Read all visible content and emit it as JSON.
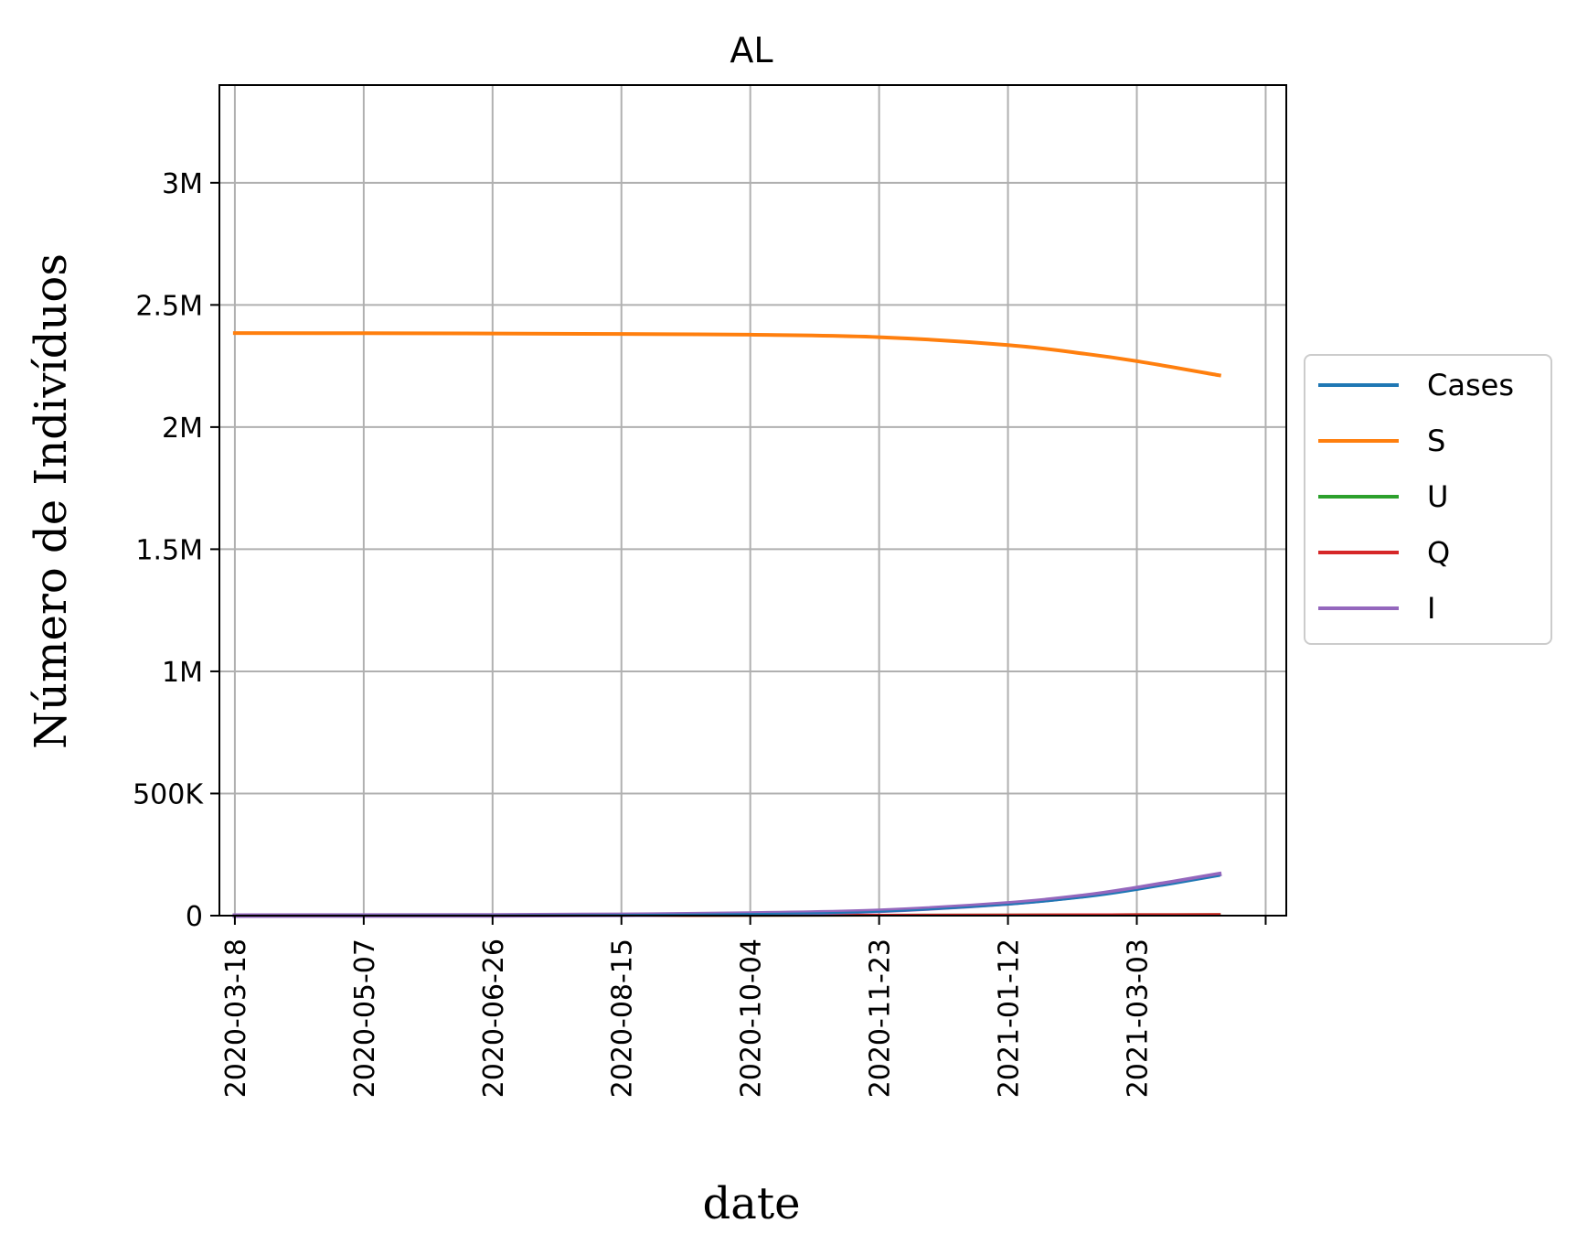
{
  "chart_data": {
    "type": "line",
    "title": "AL",
    "xlabel": "date",
    "ylabel": "Número de Indivíduos",
    "grid": true,
    "legend_position": "outside-right",
    "x_ticks": [
      "2020-03-18",
      "2020-05-07",
      "2020-06-26",
      "2020-08-15",
      "2020-10-04",
      "2020-11-23",
      "2021-01-12",
      "2021-03-03",
      ""
    ],
    "y_ticks": [
      {
        "value": 0,
        "label": "0"
      },
      {
        "value": 500000,
        "label": "500K"
      },
      {
        "value": 1000000,
        "label": "1M"
      },
      {
        "value": 1500000,
        "label": "1.5M"
      },
      {
        "value": 2000000,
        "label": "2M"
      },
      {
        "value": 2500000,
        "label": "2.5M"
      },
      {
        "value": 3000000,
        "label": "3M"
      }
    ],
    "xlim": [
      "2020-03-12",
      "2021-04-30"
    ],
    "ylim": [
      0,
      3400000
    ],
    "x": [
      "2020-03-18",
      "2020-05-07",
      "2020-06-26",
      "2020-08-15",
      "2020-10-04",
      "2020-11-23",
      "2021-01-12",
      "2021-02-11",
      "2021-03-03",
      "2021-04-04"
    ],
    "series": [
      {
        "name": "Cases",
        "color": "#1f77b4",
        "width": 2.0,
        "values": [
          0,
          300,
          1000,
          3000,
          7000,
          16000,
          45000,
          75000,
          105000,
          162000
        ]
      },
      {
        "name": "S",
        "color": "#ff7f0e",
        "width": 4.0,
        "values": [
          2385000,
          2384000,
          2383000,
          2381000,
          2378000,
          2368000,
          2336000,
          2300000,
          2270000,
          2212000
        ]
      },
      {
        "name": "U",
        "color": "#2ca02c",
        "width": 3.0,
        "values": [
          0,
          100,
          200,
          400,
          900,
          1800,
          3000,
          3600,
          4000,
          4500
        ]
      },
      {
        "name": "Q",
        "color": "#d62728",
        "width": 3.0,
        "values": [
          0,
          100,
          200,
          400,
          900,
          1800,
          3000,
          3600,
          4000,
          4500
        ]
      },
      {
        "name": "I",
        "color": "#9467bd",
        "width": 5.0,
        "values": [
          0,
          400,
          1200,
          3500,
          8500,
          20000,
          50000,
          82000,
          113000,
          170000
        ]
      }
    ]
  }
}
